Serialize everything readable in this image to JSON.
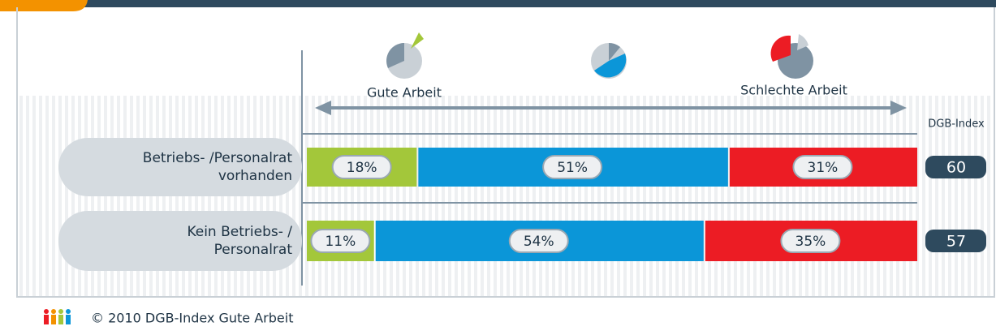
{
  "chart_data": {
    "type": "bar",
    "orientation": "horizontal",
    "stacked": true,
    "categories": [
      "Betriebs- /Personalrat\nvorhanden",
      "Kein Betriebs- /\nPersonalrat"
    ],
    "series": [
      {
        "name": "Gute Arbeit",
        "color": "#a3c73a",
        "values": [
          18,
          11
        ],
        "value_labels": [
          "18%",
          "11%"
        ]
      },
      {
        "color": "#0b96d8",
        "values": [
          51,
          54
        ],
        "value_labels": [
          "51%",
          "54%"
        ]
      },
      {
        "name": "Schlechte Arbeit",
        "color": "#ec1c24",
        "values": [
          31,
          35
        ],
        "value_labels": [
          "31%",
          "35%"
        ]
      }
    ],
    "xlim": [
      0,
      100
    ],
    "index_title": "DGB-Index",
    "index_values": [
      60,
      57
    ],
    "footer": "© 2010 DGB-Index Gute Arbeit"
  }
}
